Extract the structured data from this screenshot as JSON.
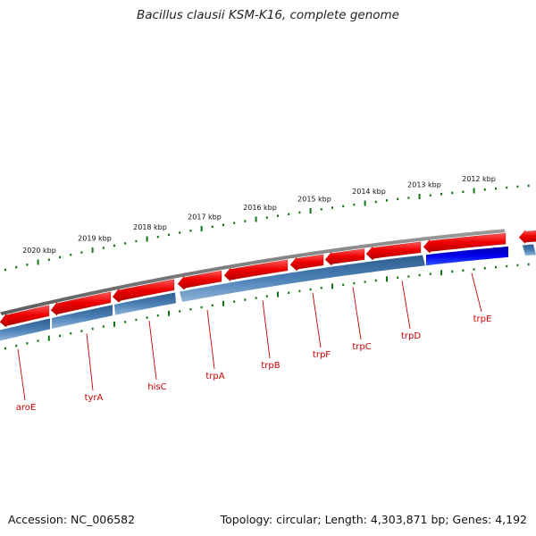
{
  "title": "Bacillus clausii KSM-K16, complete genome",
  "footer": {
    "accession": "Accession: NC_006582",
    "info": "Topology: circular; Length: 4,303,871 bp; Genes: 4,192"
  },
  "scale_labels": [
    "2020 kbp",
    "2019 kbp",
    "2018 kbp",
    "2017 kbp",
    "2016 kbp",
    "2015 kbp",
    "2014 kbp",
    "2013 kbp",
    "2012 kbp"
  ],
  "genes": [
    "aroE",
    "tyrA",
    "hisC",
    "trpA",
    "trpB",
    "trpF",
    "trpC",
    "trpD",
    "trpE"
  ],
  "colors": {
    "backbone": "#7a7a7a",
    "forward_gene": "#ee0000",
    "reverse_gene": "#3f74a8",
    "highlight_gene": "#0000ee",
    "tick": "#117711",
    "label": "#cc0000"
  }
}
